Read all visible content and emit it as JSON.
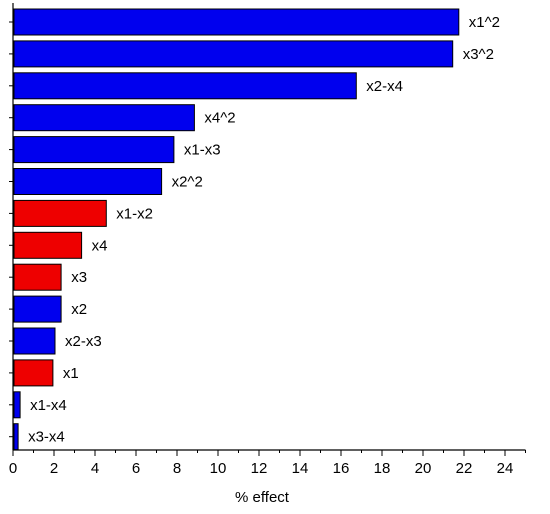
{
  "chart_data": {
    "type": "bar",
    "orientation": "horizontal",
    "title": "",
    "xlabel": "% effect",
    "ylabel": "",
    "xlim": [
      0,
      25
    ],
    "x_ticks": [
      "0",
      "2",
      "4",
      "6",
      "8",
      "10",
      "12",
      "14",
      "16",
      "18",
      "20",
      "22",
      "24"
    ],
    "grid": false,
    "legend": "none",
    "colors": {
      "positive": "#0000ee",
      "negative": "#ee0000",
      "axis": "#000000"
    },
    "bars": [
      {
        "label": "x1^2",
        "value": 21.7,
        "sign": "positive"
      },
      {
        "label": "x3^2",
        "value": 21.4,
        "sign": "positive"
      },
      {
        "label": "x2-x4",
        "value": 16.7,
        "sign": "positive"
      },
      {
        "label": "x4^2",
        "value": 8.8,
        "sign": "positive"
      },
      {
        "label": "x1-x3",
        "value": 7.8,
        "sign": "positive"
      },
      {
        "label": "x2^2",
        "value": 7.2,
        "sign": "positive"
      },
      {
        "label": "x1-x2",
        "value": 4.5,
        "sign": "negative"
      },
      {
        "label": "x4",
        "value": 3.3,
        "sign": "negative"
      },
      {
        "label": "x3",
        "value": 2.3,
        "sign": "negative"
      },
      {
        "label": "x2",
        "value": 2.3,
        "sign": "positive"
      },
      {
        "label": "x2-x3",
        "value": 2.0,
        "sign": "positive"
      },
      {
        "label": "x1",
        "value": 1.9,
        "sign": "negative"
      },
      {
        "label": "x1-x4",
        "value": 0.3,
        "sign": "positive"
      },
      {
        "label": "x3-x4",
        "value": 0.2,
        "sign": "positive"
      }
    ]
  }
}
